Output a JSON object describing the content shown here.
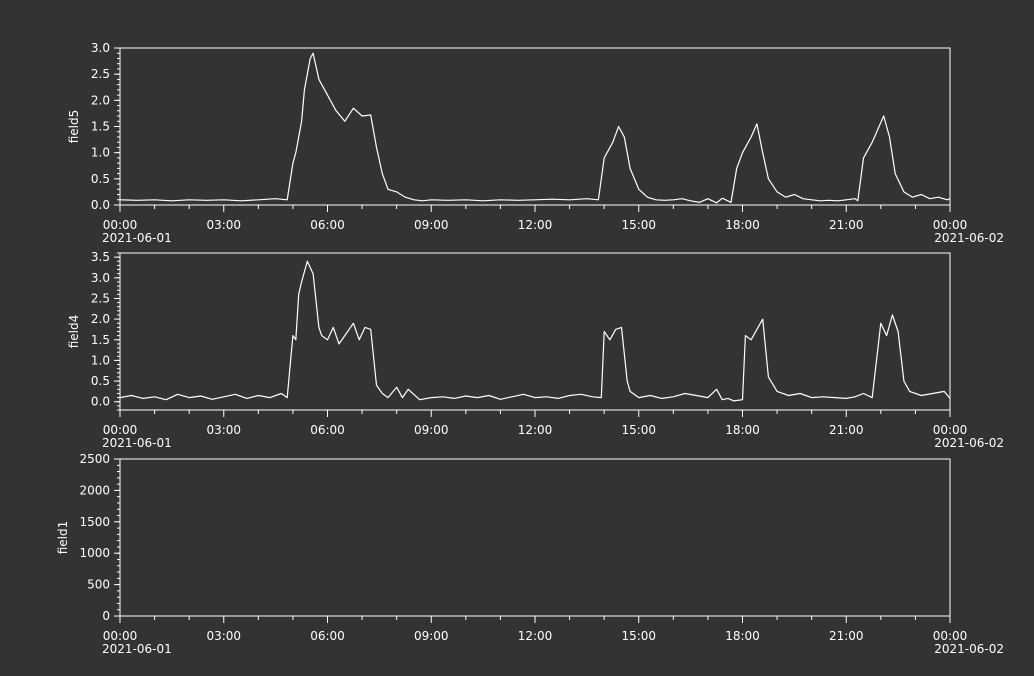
{
  "chart_data": [
    {
      "type": "line",
      "ylabel": "field5",
      "ylim": [
        0,
        3.0
      ],
      "yticks": [
        0.0,
        0.5,
        1.0,
        1.5,
        2.0,
        2.5,
        3.0
      ],
      "ytick_labels": [
        "0.0",
        "0.5",
        "1.0",
        "1.5",
        "2.0",
        "2.5",
        "3.0"
      ],
      "xlim": [
        "2021-06-01T00:00",
        "2021-06-02T00:00"
      ],
      "xtick_labels": [
        "00:00",
        "03:00",
        "06:00",
        "09:00",
        "12:00",
        "15:00",
        "18:00",
        "21:00",
        "00:00"
      ],
      "date_start": "2021-06-01",
      "date_end": "2021-06-02",
      "series": [
        {
          "x": [
            "00:00",
            "00:30",
            "01:00",
            "01:30",
            "02:00",
            "02:30",
            "03:00",
            "03:30",
            "04:00",
            "04:30",
            "04:50",
            "05:00",
            "05:05",
            "05:15",
            "05:20",
            "05:30",
            "05:35",
            "05:45",
            "06:00",
            "06:15",
            "06:30",
            "06:45",
            "07:00",
            "07:15",
            "07:25",
            "07:35",
            "07:45",
            "08:00",
            "08:15",
            "08:30",
            "08:45",
            "09:00",
            "09:30",
            "10:00",
            "10:30",
            "11:00",
            "11:30",
            "12:00",
            "12:30",
            "13:00",
            "13:30",
            "13:50",
            "14:00",
            "14:15",
            "14:25",
            "14:35",
            "14:45",
            "15:00",
            "15:15",
            "15:30",
            "15:45",
            "16:00",
            "16:15",
            "16:30",
            "16:45",
            "17:00",
            "17:15",
            "17:25",
            "17:40",
            "17:50",
            "18:00",
            "18:15",
            "18:25",
            "18:35",
            "18:45",
            "19:00",
            "19:15",
            "19:30",
            "19:45",
            "20:00",
            "20:15",
            "20:30",
            "20:45",
            "21:00",
            "21:15",
            "21:20",
            "21:30",
            "21:45",
            "22:05",
            "22:15",
            "22:25",
            "22:40",
            "22:55",
            "23:10",
            "23:25",
            "23:40",
            "23:55",
            "24:00"
          ],
          "y": [
            0.1,
            0.09,
            0.1,
            0.08,
            0.1,
            0.09,
            0.1,
            0.08,
            0.1,
            0.12,
            0.1,
            0.8,
            1.0,
            1.6,
            2.2,
            2.8,
            2.9,
            2.4,
            2.1,
            1.8,
            1.6,
            1.85,
            1.7,
            1.72,
            1.1,
            0.6,
            0.3,
            0.25,
            0.15,
            0.1,
            0.08,
            0.1,
            0.09,
            0.1,
            0.08,
            0.1,
            0.09,
            0.1,
            0.11,
            0.1,
            0.12,
            0.1,
            0.9,
            1.2,
            1.5,
            1.3,
            0.7,
            0.3,
            0.15,
            0.1,
            0.09,
            0.1,
            0.12,
            0.08,
            0.05,
            0.12,
            0.04,
            0.13,
            0.05,
            0.7,
            1.0,
            1.3,
            1.55,
            1.0,
            0.5,
            0.25,
            0.15,
            0.2,
            0.12,
            0.1,
            0.08,
            0.09,
            0.08,
            0.1,
            0.12,
            0.08,
            0.9,
            1.2,
            1.7,
            1.3,
            0.6,
            0.25,
            0.15,
            0.2,
            0.12,
            0.15,
            0.1,
            0.12
          ]
        }
      ]
    },
    {
      "type": "line",
      "ylabel": "field4",
      "ylim": [
        -0.2,
        3.6
      ],
      "yticks": [
        0.0,
        0.5,
        1.0,
        1.5,
        2.0,
        2.5,
        3.0,
        3.5
      ],
      "ytick_labels": [
        "0.0",
        "0.5",
        "1.0",
        "1.5",
        "2.0",
        "2.5",
        "3.0",
        "3.5"
      ],
      "xlim": [
        "2021-06-01T00:00",
        "2021-06-02T00:00"
      ],
      "xtick_labels": [
        "00:00",
        "03:00",
        "06:00",
        "09:00",
        "12:00",
        "15:00",
        "18:00",
        "21:00",
        "00:00"
      ],
      "date_start": "2021-06-01",
      "date_end": "2021-06-02",
      "series": [
        {
          "x": [
            "00:00",
            "00:20",
            "00:40",
            "01:00",
            "01:20",
            "01:40",
            "02:00",
            "02:20",
            "02:40",
            "03:00",
            "03:20",
            "03:40",
            "04:00",
            "04:20",
            "04:40",
            "04:50",
            "05:00",
            "05:05",
            "05:10",
            "05:15",
            "05:25",
            "05:35",
            "05:45",
            "05:50",
            "06:00",
            "06:10",
            "06:20",
            "06:30",
            "06:45",
            "06:55",
            "07:05",
            "07:15",
            "07:25",
            "07:35",
            "07:45",
            "08:00",
            "08:10",
            "08:20",
            "08:40",
            "09:00",
            "09:20",
            "09:40",
            "10:00",
            "10:20",
            "10:40",
            "11:00",
            "11:20",
            "11:40",
            "12:00",
            "12:20",
            "12:40",
            "13:00",
            "13:20",
            "13:40",
            "13:55",
            "14:00",
            "14:10",
            "14:20",
            "14:30",
            "14:40",
            "14:45",
            "15:00",
            "15:20",
            "15:40",
            "16:00",
            "16:20",
            "16:40",
            "17:00",
            "17:15",
            "17:25",
            "17:35",
            "17:45",
            "18:00",
            "18:05",
            "18:15",
            "18:25",
            "18:35",
            "18:45",
            "19:00",
            "19:20",
            "19:40",
            "20:00",
            "20:20",
            "20:40",
            "21:00",
            "21:15",
            "21:30",
            "21:45",
            "22:00",
            "22:10",
            "22:20",
            "22:30",
            "22:40",
            "22:50",
            "23:10",
            "23:30",
            "23:50",
            "24:00"
          ],
          "y": [
            0.1,
            0.15,
            0.08,
            0.12,
            0.05,
            0.18,
            0.1,
            0.14,
            0.06,
            0.12,
            0.18,
            0.08,
            0.15,
            0.1,
            0.2,
            0.1,
            1.6,
            1.5,
            2.6,
            2.9,
            3.4,
            3.1,
            1.8,
            1.6,
            1.5,
            1.8,
            1.4,
            1.6,
            1.9,
            1.5,
            1.8,
            1.75,
            0.4,
            0.2,
            0.1,
            0.35,
            0.1,
            0.3,
            0.05,
            0.1,
            0.12,
            0.08,
            0.14,
            0.1,
            0.15,
            0.06,
            0.12,
            0.18,
            0.1,
            0.12,
            0.08,
            0.15,
            0.18,
            0.12,
            0.1,
            1.7,
            1.5,
            1.75,
            1.8,
            0.5,
            0.25,
            0.1,
            0.15,
            0.08,
            0.12,
            0.2,
            0.15,
            0.1,
            0.3,
            0.05,
            0.08,
            0.02,
            0.05,
            1.6,
            1.5,
            1.75,
            2.0,
            0.6,
            0.25,
            0.15,
            0.2,
            0.1,
            0.12,
            0.1,
            0.08,
            0.12,
            0.2,
            0.1,
            1.9,
            1.6,
            2.1,
            1.7,
            0.5,
            0.25,
            0.15,
            0.2,
            0.25,
            0.08
          ]
        }
      ]
    },
    {
      "type": "line",
      "ylabel": "field1",
      "ylim": [
        0,
        2500
      ],
      "yticks": [
        0,
        500,
        1000,
        1500,
        2000,
        2500
      ],
      "ytick_labels": [
        "0",
        "500",
        "1000",
        "1500",
        "2000",
        "2500"
      ],
      "xlim": [
        "2021-06-01T00:00",
        "2021-06-02T00:00"
      ],
      "xtick_labels": [
        "00:00",
        "03:00",
        "06:00",
        "09:00",
        "12:00",
        "15:00",
        "18:00",
        "21:00",
        "00:00"
      ],
      "date_start": "2021-06-01",
      "date_end": "2021-06-02",
      "series": []
    }
  ],
  "colors": {
    "background": "#333333",
    "foreground": "#ffffff"
  }
}
